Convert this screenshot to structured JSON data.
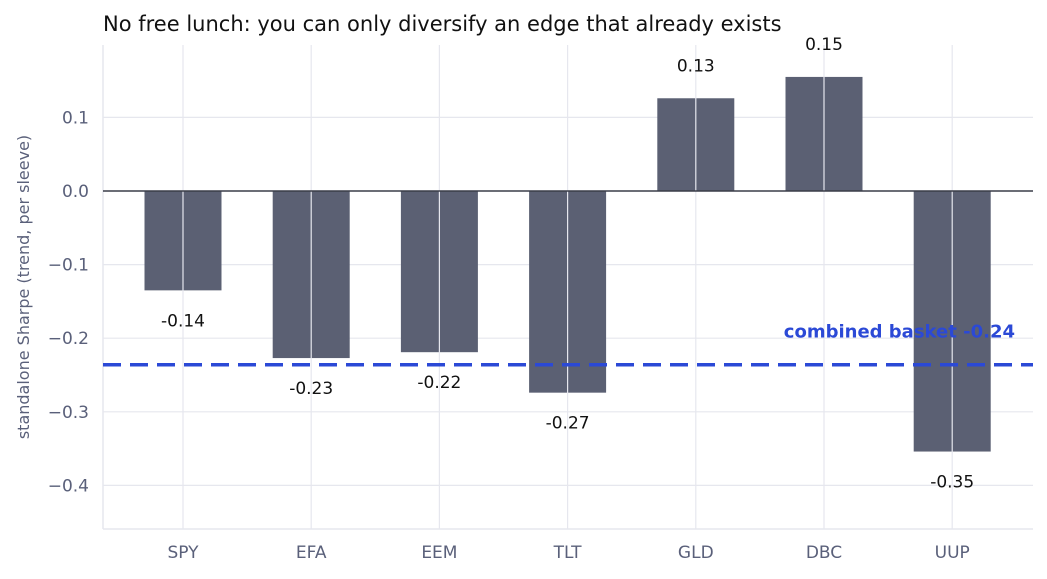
{
  "chart_data": {
    "type": "bar",
    "title": "No free lunch: you can only diversify an edge that already exists",
    "xlabel": "",
    "ylabel": "standalone Sharpe (trend, per sleeve)",
    "categories": [
      "SPY",
      "EFA",
      "EEM",
      "TLT",
      "GLD",
      "DBC",
      "UUP"
    ],
    "values": [
      -0.135,
      -0.227,
      -0.219,
      -0.274,
      0.126,
      0.155,
      -0.354
    ],
    "value_labels": [
      "-0.14",
      "-0.23",
      "-0.22",
      "-0.27",
      "0.13",
      "0.15",
      "-0.35"
    ],
    "ylim": [
      -0.46,
      0.2
    ],
    "yticks": [
      0.1,
      0.0,
      -0.1,
      -0.2,
      -0.3,
      -0.4
    ],
    "ytick_labels": [
      "0.1",
      "0.0",
      "−0.1",
      "−0.2",
      "−0.3",
      "−0.4"
    ],
    "grid": true,
    "reference_line": {
      "value": -0.236,
      "label": "combined basket  -0.24",
      "style": "dashed"
    },
    "colors": {
      "bar": "#5b6073",
      "reference": "#2b49d6",
      "grid": "#e6e7ee",
      "zero_line": "#3a3d48"
    }
  }
}
